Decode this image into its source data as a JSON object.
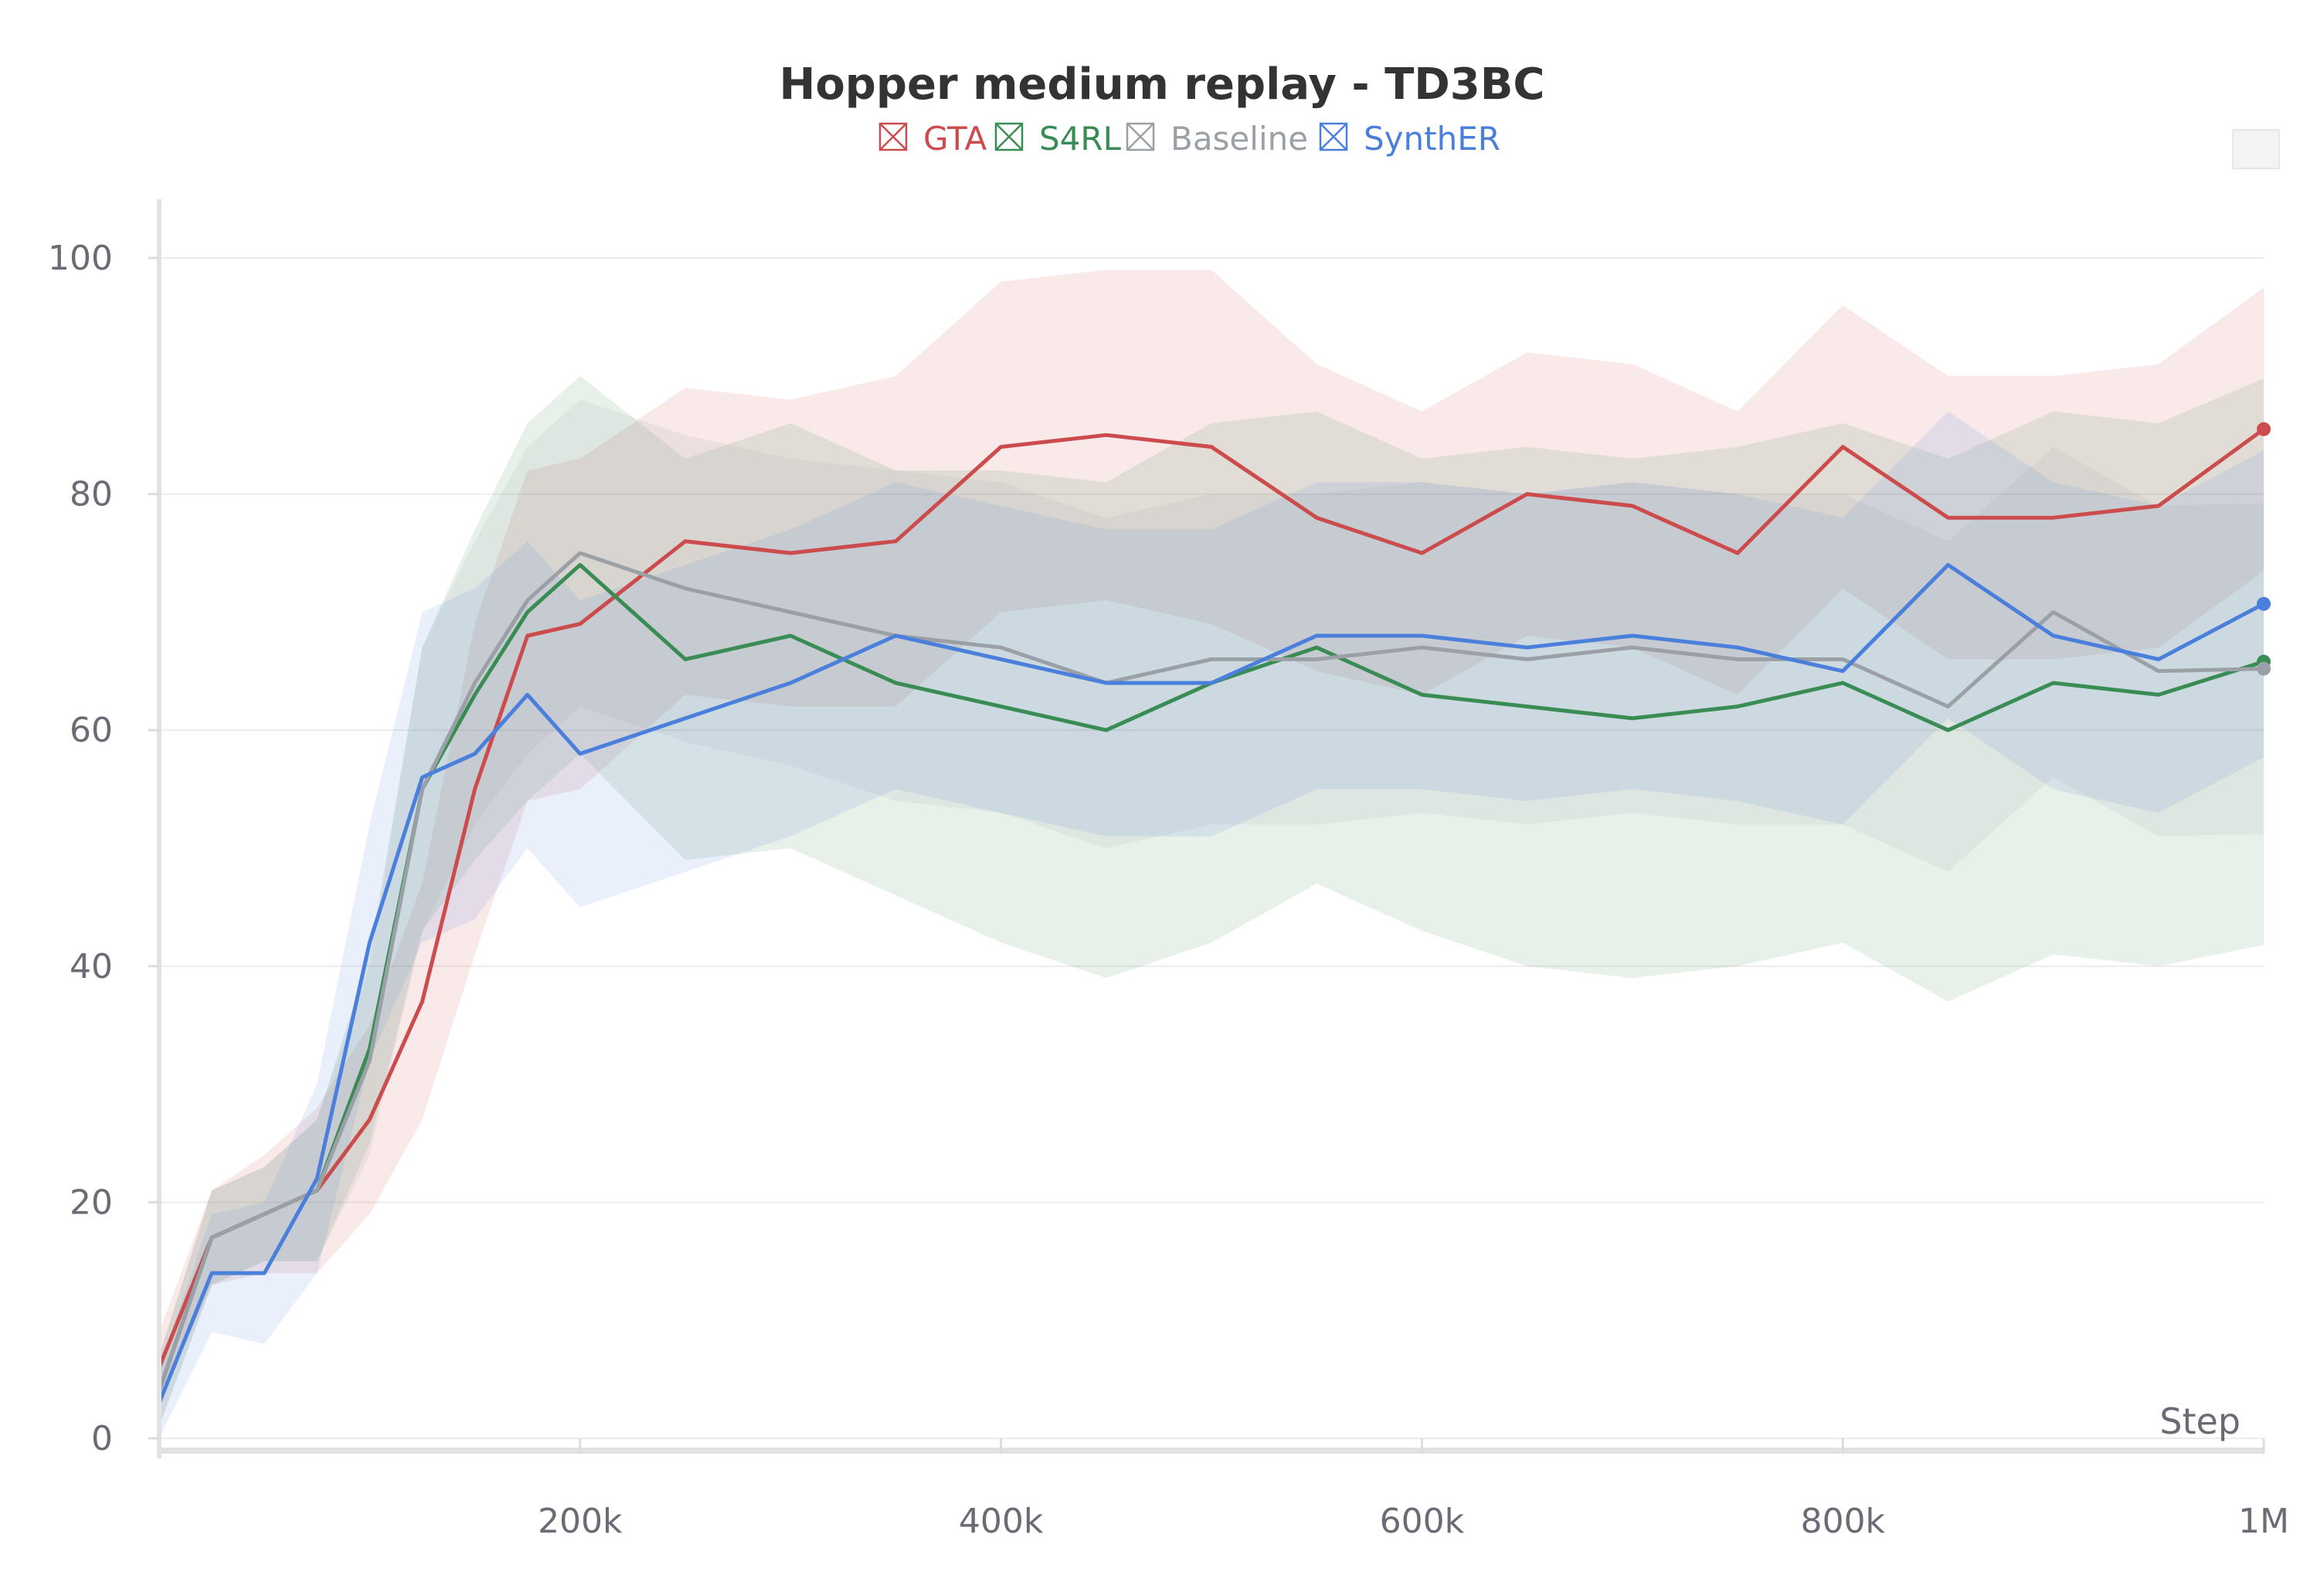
{
  "chart_data": {
    "type": "line",
    "title": "Hopper medium replay - TD3BC",
    "xlabel": "Step",
    "ylabel": "",
    "xlim": [
      0,
      1000000
    ],
    "ylim": [
      0,
      100
    ],
    "x_ticks": [
      200000,
      400000,
      600000,
      800000,
      1000000
    ],
    "x_tick_labels": [
      "200k",
      "400k",
      "600k",
      "800k",
      "1M"
    ],
    "y_ticks": [
      0,
      20,
      40,
      60,
      80,
      100
    ],
    "y_tick_labels": [
      "0",
      "20",
      "40",
      "60",
      "80",
      "100"
    ],
    "grid": true,
    "legend_position": "top-center",
    "x": [
      0,
      25000,
      50000,
      75000,
      100000,
      125000,
      150000,
      175000,
      200000,
      250000,
      300000,
      350000,
      400000,
      450000,
      500000,
      550000,
      600000,
      650000,
      700000,
      750000,
      800000,
      850000,
      900000,
      950000,
      1000000
    ],
    "series": [
      {
        "name": "GTA",
        "color": "#cc4b4c",
        "values": [
          6,
          17,
          19,
          21,
          27,
          37,
          55,
          68,
          69,
          76,
          75,
          76,
          84,
          85,
          84,
          78,
          75,
          80,
          79,
          75,
          84,
          78,
          78,
          79,
          85.5
        ],
        "band_half_width": [
          3,
          4,
          5,
          7,
          8,
          10,
          14,
          14,
          14,
          13,
          13,
          14,
          14,
          14,
          15,
          13,
          12,
          12,
          12,
          12,
          12,
          12,
          12,
          12,
          12
        ]
      },
      {
        "name": "S4RL",
        "color": "#3a8c55",
        "values": [
          4,
          17,
          19,
          21,
          33,
          55,
          63,
          70,
          74,
          66,
          68,
          64,
          62,
          60,
          64,
          67,
          63,
          62,
          61,
          62,
          64,
          60,
          64,
          63,
          65.8
        ],
        "band_half_width": [
          3,
          4,
          4,
          6,
          8,
          12,
          14,
          16,
          16,
          17,
          18,
          18,
          20,
          21,
          22,
          20,
          20,
          22,
          22,
          22,
          22,
          23,
          23,
          23,
          24
        ]
      },
      {
        "name": "Baseline",
        "color": "#9aa0a6",
        "values": [
          4,
          17,
          19,
          21,
          32,
          55,
          64,
          71,
          75,
          72,
          70,
          68,
          67,
          64,
          66,
          66,
          67,
          66,
          67,
          66,
          66,
          62,
          70,
          65,
          65.2
        ],
        "band_half_width": [
          3,
          4,
          4,
          6,
          8,
          12,
          12,
          13,
          13,
          13,
          13,
          14,
          14,
          14,
          14,
          14,
          14,
          14,
          14,
          14,
          14,
          14,
          14,
          14,
          14
        ]
      },
      {
        "name": "SynthER",
        "color": "#4a7fdc",
        "values": [
          3,
          14,
          14,
          22,
          42,
          56,
          58,
          63,
          58,
          61,
          64,
          68,
          66,
          64,
          64,
          68,
          68,
          67,
          68,
          67,
          65,
          74,
          68,
          66,
          70.7
        ],
        "band_half_width": [
          3,
          5,
          6,
          8,
          10,
          14,
          14,
          13,
          13,
          13,
          13,
          13,
          13,
          13,
          13,
          13,
          13,
          13,
          13,
          13,
          13,
          13,
          13,
          13,
          13
        ]
      }
    ]
  }
}
